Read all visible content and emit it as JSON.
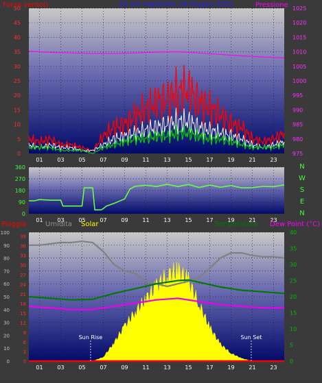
{
  "colors": {
    "background": "#3a3a3a",
    "plot_top": "#c8c8c8",
    "plot_bottom": "#000a6a",
    "red": "#ff0000",
    "green": "#00d000",
    "white": "#ffffff",
    "magenta": "#ff00ff",
    "gray": "#808080",
    "yellow": "#ffff00",
    "blue": "#2020ff",
    "lime": "#66ff44",
    "dew": "#ee00ee",
    "temp": "#007a00"
  },
  "chart_data": [
    {
      "type": "line",
      "title": "24 ore registrate 18 Giugno 2022",
      "left_label": "Forza vento()",
      "right_label": "Pressione",
      "x_ticks": [
        "01",
        "03",
        "05",
        "07",
        "09",
        "11",
        "13",
        "15",
        "17",
        "19",
        "21",
        "23"
      ],
      "y_left_ticks": [
        "0",
        "5",
        "10",
        "15",
        "20",
        "25",
        "30",
        "35",
        "40",
        "45",
        "50"
      ],
      "y_right_ticks": [
        "975",
        "980",
        "985",
        "990",
        "995",
        "1000",
        "1005",
        "1010",
        "1015",
        "1020",
        "1025"
      ],
      "ylim_left": [
        0,
        50
      ],
      "ylim_right": [
        975,
        1025
      ],
      "grid": true,
      "series": [
        {
          "color_key": "red",
          "x": [
            0,
            1,
            2,
            3,
            4,
            5,
            6,
            7,
            8,
            9,
            10,
            11,
            12,
            13,
            14,
            15,
            16,
            17,
            18,
            19,
            20,
            21,
            22,
            23,
            24
          ],
          "values": [
            5,
            4,
            5,
            3,
            3,
            2,
            1,
            6,
            9,
            10,
            13,
            15,
            18,
            19,
            21,
            22,
            18,
            16,
            13,
            10,
            9,
            5,
            4,
            5,
            7
          ]
        },
        {
          "color_key": "white",
          "x": [
            0,
            1,
            2,
            3,
            4,
            5,
            6,
            7,
            8,
            9,
            10,
            11,
            12,
            13,
            14,
            15,
            16,
            17,
            18,
            19,
            20,
            21,
            22,
            23,
            24
          ],
          "values": [
            3,
            2,
            3,
            2,
            2,
            1,
            1,
            3,
            5,
            6,
            7,
            8,
            9,
            10,
            11,
            11,
            9,
            8,
            7,
            6,
            5,
            3,
            2,
            3,
            4
          ]
        },
        {
          "color_key": "green",
          "x": [
            0,
            1,
            2,
            3,
            4,
            5,
            6,
            7,
            8,
            9,
            10,
            11,
            12,
            13,
            14,
            15,
            16,
            17,
            18,
            19,
            20,
            21,
            22,
            23,
            24
          ],
          "values": [
            2,
            2,
            2,
            1,
            1,
            1,
            0,
            2,
            3,
            4,
            5,
            5,
            6,
            6,
            7,
            7,
            6,
            5,
            5,
            4,
            3,
            2,
            2,
            2,
            3
          ]
        },
        {
          "color_key": "magenta",
          "axis": "right",
          "x": [
            0,
            2,
            4,
            6,
            8,
            10,
            12,
            14,
            16,
            18,
            20,
            22,
            24
          ],
          "values": [
            1010.2,
            1009.8,
            1009.6,
            1009.4,
            1009.4,
            1009.6,
            1009.9,
            1010,
            1009.6,
            1009.1,
            1008.6,
            1008.2,
            1007.9
          ]
        }
      ]
    },
    {
      "type": "line",
      "right_label": "NWSEN",
      "x_ticks": [
        "01",
        "03",
        "05",
        "07",
        "09",
        "11",
        "13",
        "15",
        "17",
        "19",
        "21",
        "23"
      ],
      "y_left_ticks": [
        "0",
        "90",
        "180",
        "270",
        "360"
      ],
      "ylim_left": [
        0,
        360
      ],
      "grid": true,
      "series": [
        {
          "color_key": "lime",
          "x": [
            0,
            0.5,
            1,
            2,
            3,
            3.2,
            4,
            5,
            5.2,
            6,
            6.2,
            6.8,
            7,
            7.3,
            8,
            9,
            9.5,
            10,
            11,
            12,
            13,
            14,
            15,
            16,
            17,
            18,
            19,
            20,
            21,
            22,
            23,
            24
          ],
          "values": [
            100,
            100,
            110,
            105,
            105,
            60,
            60,
            60,
            200,
            200,
            30,
            30,
            40,
            60,
            80,
            120,
            180,
            210,
            220,
            215,
            220,
            220,
            215,
            215,
            210,
            215,
            210,
            205,
            200,
            210,
            215,
            215
          ]
        }
      ]
    },
    {
      "type": "area",
      "left_labels": [
        "Pioggia",
        "Umidita",
        "Solar"
      ],
      "right_labels": [
        "Temperatura",
        "Dew Point (°C)"
      ],
      "x_ticks": [
        "01",
        "03",
        "05",
        "07",
        "09",
        "11",
        "13",
        "15",
        "17",
        "19",
        "21",
        "23"
      ],
      "y_outer_ticks": [
        "0",
        "10",
        "20",
        "30",
        "40",
        "50",
        "60",
        "70",
        "80",
        "90",
        "100"
      ],
      "y_inner_ticks": [
        "0",
        "3",
        "6",
        "9",
        "12",
        "15",
        "18",
        "21",
        "24",
        "27",
        "30",
        "33",
        "36",
        "39"
      ],
      "y_right_ticks": [
        "0",
        "5",
        "10",
        "15",
        "20",
        "25",
        "30",
        "35",
        "40"
      ],
      "ylim_outer": [
        0,
        100
      ],
      "ylim_right": [
        0,
        40
      ],
      "grid": true,
      "annotations": [
        {
          "text": "Sun Rise",
          "x": 5.8
        },
        {
          "text": "Sun Set",
          "x": 20.9
        }
      ],
      "series": [
        {
          "color_key": "yellow",
          "fill": true,
          "x": [
            0,
            6,
            7,
            8,
            9,
            10,
            11,
            12,
            13,
            14,
            15,
            16,
            17,
            18,
            19,
            20,
            21,
            22,
            23,
            24
          ],
          "values": [
            0,
            0,
            3,
            14,
            27,
            38,
            48,
            58,
            66,
            70,
            62,
            44,
            26,
            13,
            6,
            2,
            0,
            0,
            0,
            0
          ]
        },
        {
          "color_key": "gray",
          "x": [
            0,
            1,
            2,
            3,
            4,
            5,
            6,
            7,
            8,
            9,
            10,
            11,
            12,
            13,
            14,
            15,
            16,
            17,
            18,
            19,
            20,
            21,
            22,
            23,
            24
          ],
          "values": [
            90,
            90,
            91,
            92,
            92,
            93,
            92,
            85,
            75,
            70,
            68,
            62,
            60,
            58,
            60,
            62,
            65,
            72,
            80,
            84,
            84,
            82,
            81,
            81,
            80
          ]
        },
        {
          "color_key": "temp",
          "axis": "right",
          "x": [
            0,
            2,
            4,
            6,
            8,
            10,
            12,
            14,
            15,
            16,
            18,
            20,
            22,
            24
          ],
          "values": [
            20,
            19.5,
            19,
            19.2,
            21,
            22.5,
            24,
            25,
            25.2,
            24.5,
            23,
            22,
            21.5,
            21
          ]
        },
        {
          "color_key": "dew",
          "axis": "right",
          "x": [
            0,
            2,
            4,
            6,
            8,
            10,
            12,
            14,
            16,
            18,
            20,
            22,
            24
          ],
          "values": [
            17,
            16.5,
            16,
            16,
            17,
            18,
            19,
            19.5,
            18.5,
            17.5,
            17,
            16.5,
            16.5
          ]
        },
        {
          "color_key": "red",
          "x": [
            0,
            24
          ],
          "values": [
            0,
            0
          ]
        }
      ]
    }
  ]
}
